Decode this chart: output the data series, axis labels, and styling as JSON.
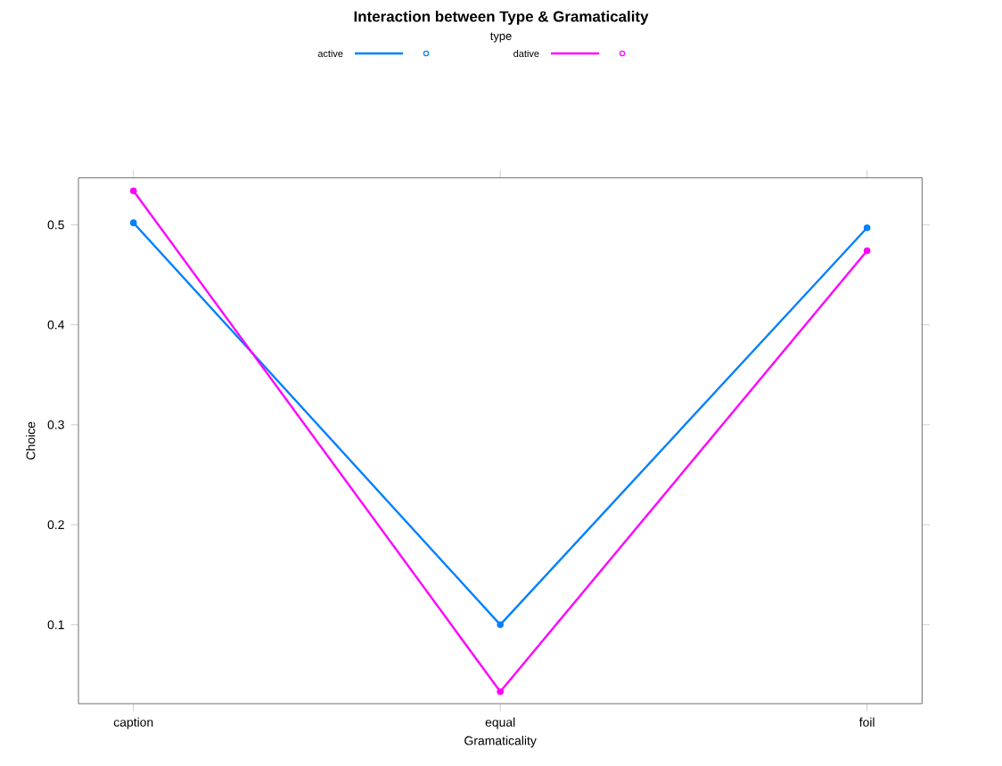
{
  "chart_data": {
    "type": "line",
    "title": "Interaction between Type & Gramaticality",
    "legend_title": "type",
    "xlabel": "Gramaticality",
    "ylabel": "Choice",
    "categories": [
      "caption",
      "equal",
      "foil"
    ],
    "series": [
      {
        "name": "active",
        "color": "#0080ff",
        "values": [
          0.502,
          0.1,
          0.497
        ]
      },
      {
        "name": "dative",
        "color": "#ff00ff",
        "values": [
          0.534,
          0.033,
          0.474
        ]
      }
    ],
    "ylim": [
      0.021,
      0.547
    ],
    "yticks": [
      0.1,
      0.2,
      0.3,
      0.4,
      0.5
    ],
    "grid": false,
    "legend": "top",
    "marker": "circle",
    "line_style": "solid"
  }
}
